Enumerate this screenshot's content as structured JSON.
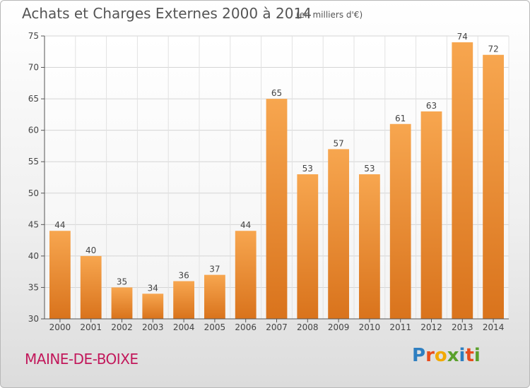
{
  "header": {
    "title": "Achats et Charges Externes 2000 à 2014",
    "subtitle": "(en milliers d'€)"
  },
  "footer": {
    "commune": "MAINE-DE-BOIXE",
    "logo_text": "Proxiti",
    "logo_colors": [
      "#2e7fc1",
      "#e84c1c",
      "#f2a900",
      "#5aa02c",
      "#2e7fc1",
      "#e84c1c",
      "#5aa02c"
    ]
  },
  "chart_data": {
    "type": "bar",
    "title": "Achats et Charges Externes 2000 à 2014",
    "subtitle": "(en milliers d'€)",
    "categories": [
      "2000",
      "2001",
      "2002",
      "2003",
      "2004",
      "2005",
      "2006",
      "2007",
      "2008",
      "2009",
      "2010",
      "2011",
      "2012",
      "2013",
      "2014"
    ],
    "values": [
      44,
      40,
      35,
      34,
      36,
      37,
      44,
      65,
      53,
      57,
      53,
      61,
      63,
      74,
      72
    ],
    "ylim": [
      30,
      75
    ],
    "yticks": [
      30,
      35,
      40,
      45,
      50,
      55,
      60,
      65,
      70,
      75
    ],
    "grid": true,
    "bar_color_top": "#f7a64f",
    "bar_color_bottom": "#d9731c",
    "xlabel": "",
    "ylabel": ""
  }
}
